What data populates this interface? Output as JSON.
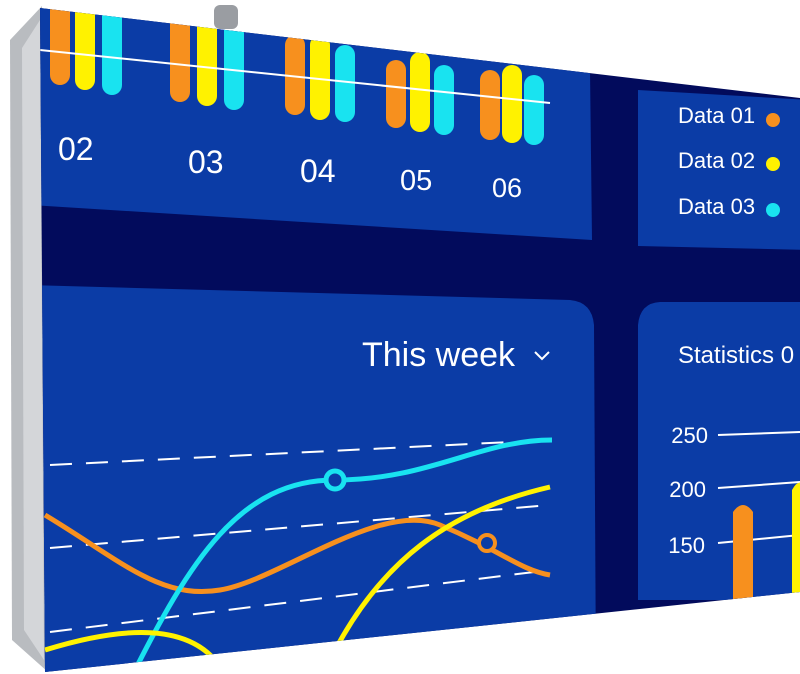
{
  "top_panel": {
    "labels": [
      "02",
      "03",
      "04",
      "05",
      "06"
    ]
  },
  "legend": {
    "items": [
      "Data 01",
      "Data 02",
      "Data 03"
    ]
  },
  "week_panel": {
    "title": "This week"
  },
  "stats_panel": {
    "title": "Statistics 0",
    "yticks": [
      "250",
      "200",
      "150"
    ]
  }
}
